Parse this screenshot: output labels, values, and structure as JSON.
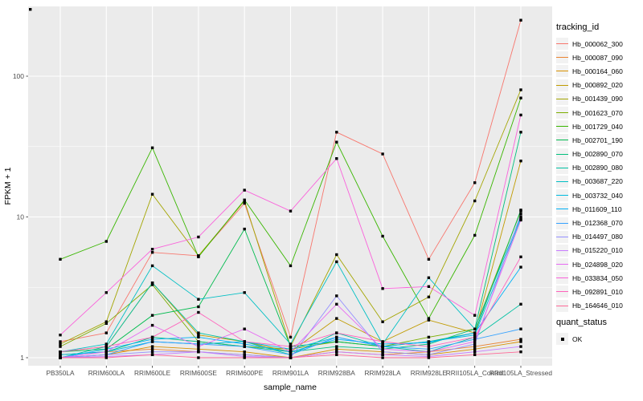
{
  "chart_data": {
    "type": "line",
    "title": "",
    "xlabel": "sample_name",
    "ylabel": "FPKM + 1",
    "y_scale": "log10",
    "y_ticks": [
      1,
      10,
      100
    ],
    "y_tick_labels": [
      "1",
      "10",
      "100"
    ],
    "y_minor_ticks": [
      3.1623,
      31.623,
      316.23
    ],
    "ylim": [
      0.95,
      320
    ],
    "grid": true,
    "panel_bg": "#EBEBEB",
    "gridline_color": "#FFFFFF",
    "axis_text_color": "#4D4D4D",
    "tick_mark_color": "#333333",
    "point_marker": {
      "shape": "square",
      "color": "#000000",
      "size": 3.4
    },
    "stray_marker_top_left": true,
    "categories": [
      "PB350LA",
      "RRIM600LA",
      "RRIM600LE",
      "RRIM600SE",
      "RRIM600PE",
      "RRIM901LA",
      "RRIM928BA",
      "RRIM928LA",
      "RRIM928LE",
      "RRII105LA_Control",
      "RRII105LA_Stressed"
    ],
    "legend": {
      "title": "tracking_id",
      "position": "right"
    },
    "legend2": {
      "title": "quant_status",
      "items": [
        {
          "label": "OK",
          "marker": "black-square"
        }
      ]
    },
    "series": [
      {
        "name": "Hb_000062_300",
        "color": "#F8766D",
        "values": [
          1.3,
          1.5,
          5.6,
          5.3,
          12.5,
          1.4,
          40,
          28,
          5.0,
          17.5,
          250
        ]
      },
      {
        "name": "Hb_000087_090",
        "color": "#EA8331",
        "values": [
          1.05,
          1.1,
          1.15,
          1.1,
          1.05,
          1.0,
          1.1,
          1.05,
          1.1,
          1.2,
          1.35
        ]
      },
      {
        "name": "Hb_000164_060",
        "color": "#D89000",
        "values": [
          1.0,
          1.05,
          1.2,
          1.15,
          1.1,
          1.0,
          1.15,
          1.1,
          1.05,
          1.15,
          1.3
        ]
      },
      {
        "name": "Hb_000892_020",
        "color": "#C09B00",
        "values": [
          1.1,
          1.2,
          3.4,
          1.45,
          1.3,
          1.1,
          1.9,
          1.3,
          1.85,
          1.5,
          25
        ]
      },
      {
        "name": "Hb_001439_090",
        "color": "#A3A500",
        "values": [
          1.25,
          1.8,
          14.5,
          5.3,
          13,
          1.2,
          5.4,
          1.8,
          2.7,
          13,
          80
        ]
      },
      {
        "name": "Hb_001623_070",
        "color": "#7CAE00",
        "values": [
          1.2,
          1.75,
          3.3,
          1.3,
          1.2,
          1.15,
          1.3,
          1.2,
          1.4,
          1.6,
          11
        ]
      },
      {
        "name": "Hb_001729_040",
        "color": "#39B600",
        "values": [
          5.0,
          6.7,
          31,
          5.2,
          13.2,
          4.5,
          34,
          7.3,
          1.9,
          7.4,
          70
        ]
      },
      {
        "name": "Hb_002701_190",
        "color": "#00BB4E",
        "values": [
          1.1,
          1.15,
          2.0,
          2.3,
          8.2,
          1.2,
          1.3,
          1.2,
          1.3,
          1.5,
          11.2
        ]
      },
      {
        "name": "Hb_002890_070",
        "color": "#00BF7D",
        "values": [
          1.05,
          1.1,
          1.4,
          1.3,
          1.2,
          1.1,
          1.2,
          1.15,
          1.25,
          1.6,
          40
        ]
      },
      {
        "name": "Hb_002890_080",
        "color": "#00C1A3",
        "values": [
          1.0,
          1.2,
          3.4,
          1.5,
          1.3,
          1.05,
          1.5,
          1.2,
          1.1,
          1.4,
          2.4
        ]
      },
      {
        "name": "Hb_003687_220",
        "color": "#00BFC4",
        "values": [
          1.1,
          1.25,
          4.5,
          2.6,
          2.9,
          1.25,
          4.8,
          1.25,
          3.7,
          1.6,
          10
        ]
      },
      {
        "name": "Hb_003732_040",
        "color": "#00BAE0",
        "values": [
          1.05,
          1.1,
          1.3,
          1.25,
          1.3,
          1.15,
          1.4,
          1.2,
          1.3,
          1.45,
          9.7
        ]
      },
      {
        "name": "Hb_011609_110",
        "color": "#00B0F6",
        "values": [
          1.0,
          1.15,
          1.35,
          1.4,
          1.25,
          1.1,
          1.35,
          1.25,
          1.28,
          1.5,
          4.4
        ]
      },
      {
        "name": "Hb_012368_070",
        "color": "#35A2FF",
        "values": [
          1.0,
          1.05,
          1.3,
          1.25,
          1.2,
          1.05,
          1.4,
          1.2,
          1.15,
          1.35,
          1.6
        ]
      },
      {
        "name": "Hb_014497_080",
        "color": "#9590FF",
        "values": [
          1.0,
          1.05,
          1.1,
          1.1,
          1.05,
          1.0,
          2.75,
          1.1,
          1.05,
          1.25,
          10.5
        ]
      },
      {
        "name": "Hb_015220_010",
        "color": "#C77CFF",
        "values": [
          1.0,
          1.02,
          1.05,
          1.1,
          1.02,
          1.0,
          1.1,
          1.05,
          1.02,
          1.1,
          1.2
        ]
      },
      {
        "name": "Hb_024898_020",
        "color": "#E76BF3",
        "values": [
          1.0,
          1.1,
          1.7,
          1.2,
          1.6,
          1.1,
          2.4,
          1.15,
          1.1,
          1.3,
          9.5
        ]
      },
      {
        "name": "Hb_033834_050",
        "color": "#FA62DB",
        "values": [
          1.45,
          2.9,
          5.9,
          7.2,
          15.5,
          11,
          26,
          3.1,
          3.2,
          2.0,
          53
        ]
      },
      {
        "name": "Hb_092891_010",
        "color": "#FF62BC",
        "values": [
          1.1,
          1.2,
          1.4,
          2.1,
          1.3,
          1.2,
          1.5,
          1.3,
          1.2,
          1.4,
          5.2
        ]
      },
      {
        "name": "Hb_164646_010",
        "color": "#FF6A98",
        "values": [
          1.0,
          1.0,
          1.05,
          1.0,
          1.0,
          1.0,
          1.05,
          1.0,
          1.0,
          1.05,
          1.1
        ]
      }
    ]
  }
}
